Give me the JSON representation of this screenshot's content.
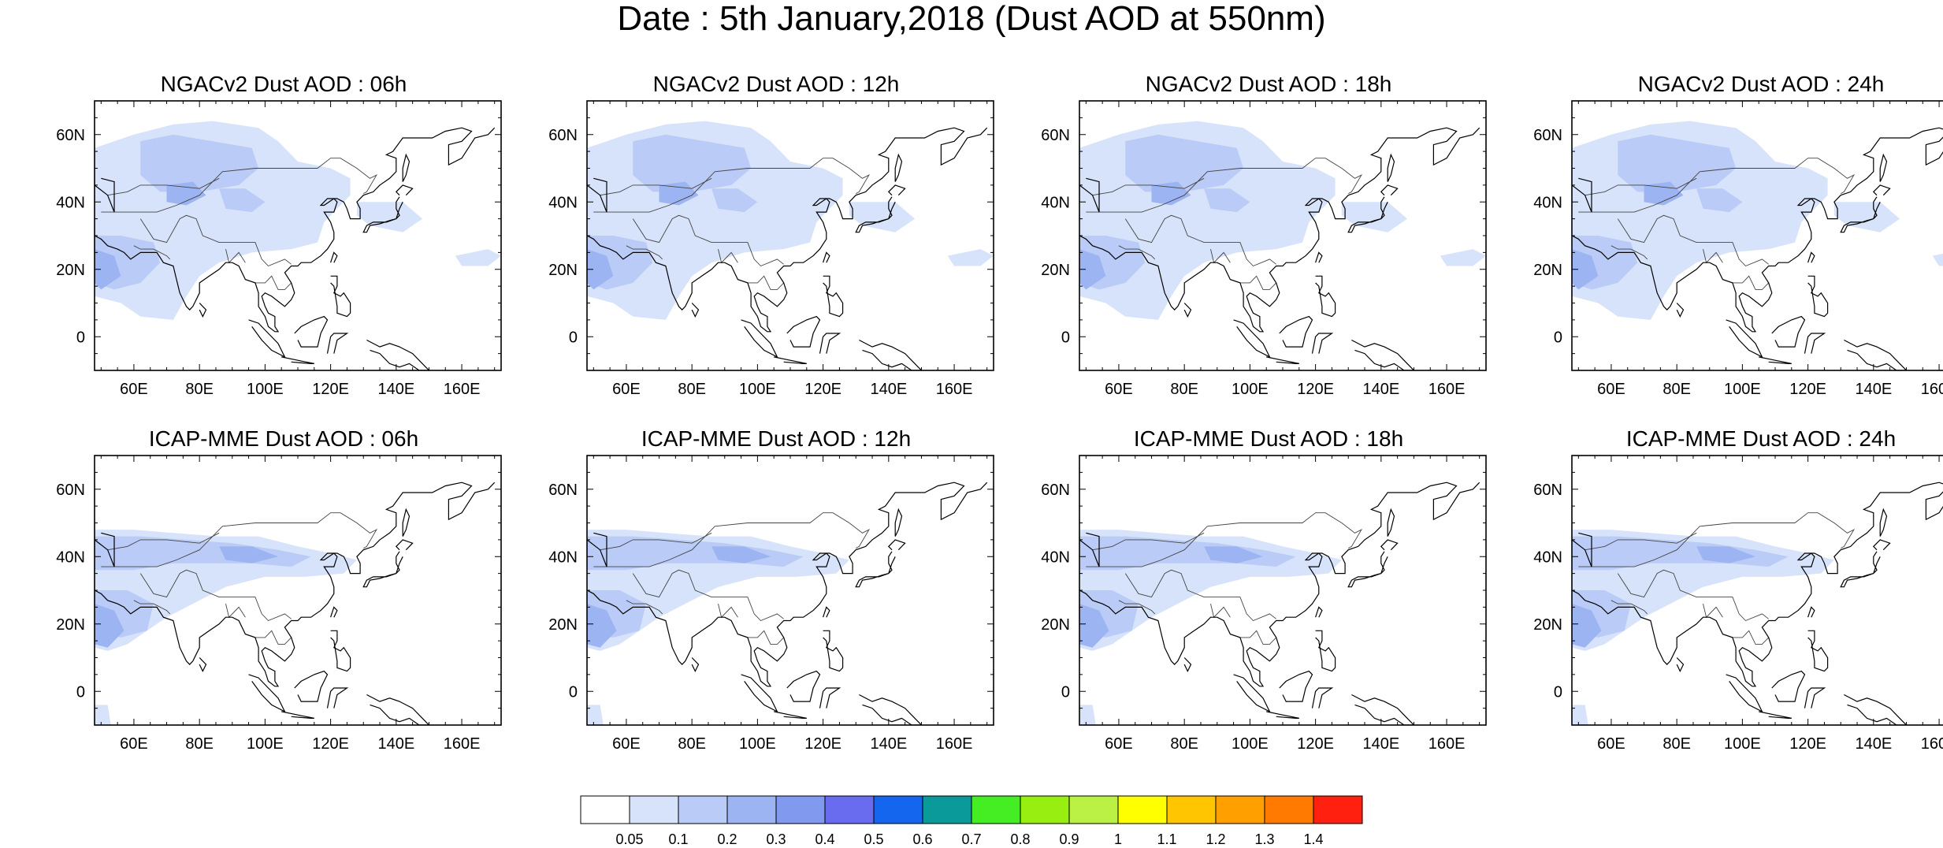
{
  "title": "Date : 5th January,2018 (Dust AOD at 550nm)",
  "panels": [
    {
      "title": "NGACv2 Dust AOD : 06h",
      "model": "NGAC"
    },
    {
      "title": "NGACv2 Dust AOD : 12h",
      "model": "NGAC"
    },
    {
      "title": "NGACv2 Dust AOD : 18h",
      "model": "NGAC"
    },
    {
      "title": "NGACv2 Dust AOD : 24h",
      "model": "NGAC"
    },
    {
      "title": "ICAP-MME Dust AOD : 06h",
      "model": "ICAP"
    },
    {
      "title": "ICAP-MME Dust AOD : 12h",
      "model": "ICAP"
    },
    {
      "title": "ICAP-MME Dust AOD : 18h",
      "model": "ICAP"
    },
    {
      "title": "ICAP-MME Dust AOD : 24h",
      "model": "ICAP"
    }
  ],
  "axes": {
    "lon_range": [
      48,
      172
    ],
    "lat_range": [
      -10,
      70
    ],
    "lon_ticks": [
      {
        "v": 60,
        "label": "60E"
      },
      {
        "v": 80,
        "label": "80E"
      },
      {
        "v": 100,
        "label": "100E"
      },
      {
        "v": 120,
        "label": "120E"
      },
      {
        "v": 140,
        "label": "140E"
      },
      {
        "v": 160,
        "label": "160E"
      }
    ],
    "lat_ticks": [
      {
        "v": 60,
        "label": "60N"
      },
      {
        "v": 40,
        "label": "40N"
      },
      {
        "v": 20,
        "label": "20N"
      },
      {
        "v": 0,
        "label": "0"
      }
    ]
  },
  "colorbar": {
    "colors": [
      "#ffffff",
      "#d7e3fa",
      "#b9cbf6",
      "#9db4f2",
      "#8199ef",
      "#6a6cf0",
      "#1466ee",
      "#0a9a99",
      "#44ee22",
      "#99ee11",
      "#bbf044",
      "#ffff00",
      "#ffc500",
      "#ff9f00",
      "#ff7a00",
      "#ff2010"
    ],
    "labels": [
      "0.05",
      "0.1",
      "0.2",
      "0.3",
      "0.4",
      "0.5",
      "0.6",
      "0.7",
      "0.8",
      "0.9",
      "1",
      "1.1",
      "1.2",
      "1.3",
      "1.4"
    ]
  }
}
